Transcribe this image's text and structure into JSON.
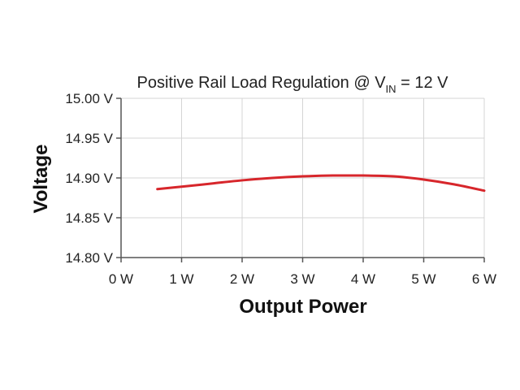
{
  "chart_data": {
    "type": "line",
    "title": {
      "prefix": "Positive Rail Load Regulation @ V",
      "subscript": "IN",
      "suffix": " = 12 V"
    },
    "xlabel": "Output Power",
    "ylabel": "Voltage",
    "xlim": [
      0,
      6
    ],
    "ylim": [
      14.8,
      15.0
    ],
    "x_ticks": [
      0,
      1,
      2,
      3,
      4,
      5,
      6
    ],
    "x_tick_labels": [
      "0 W",
      "1 W",
      "2 W",
      "3 W",
      "4 W",
      "5 W",
      "6 W"
    ],
    "y_ticks": [
      14.8,
      14.85,
      14.9,
      14.95,
      15.0
    ],
    "y_tick_labels": [
      "14.80 V",
      "14.85 V",
      "14.90 V",
      "14.95 V",
      "15.00 V"
    ],
    "grid": true,
    "series": [
      {
        "color": "#d7262b",
        "x": [
          0.6,
          1.0,
          1.5,
          2.0,
          2.5,
          3.0,
          3.5,
          4.0,
          4.5,
          5.0,
          5.5,
          6.0
        ],
        "y": [
          14.886,
          14.889,
          14.893,
          14.897,
          14.9,
          14.902,
          14.903,
          14.903,
          14.902,
          14.898,
          14.892,
          14.884
        ]
      }
    ]
  }
}
